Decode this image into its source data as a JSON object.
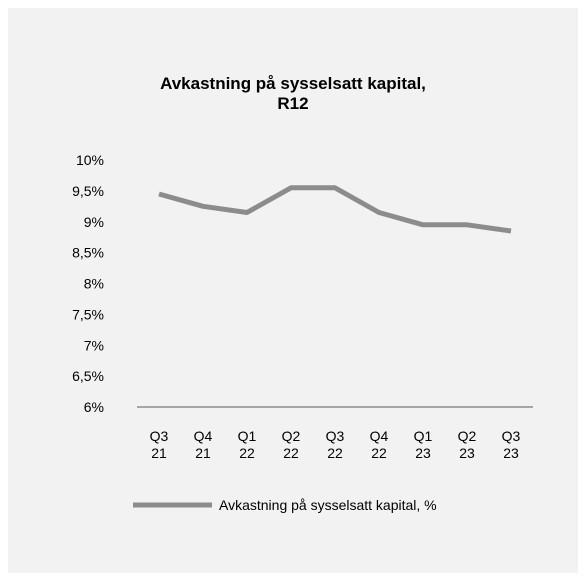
{
  "chart_data": {
    "type": "line",
    "title_lines": [
      "Avkastning på sysselsatt kapital,",
      "R12"
    ],
    "categories": [
      [
        "Q3",
        "21"
      ],
      [
        "Q4",
        "21"
      ],
      [
        "Q1",
        "22"
      ],
      [
        "Q2",
        "22"
      ],
      [
        "Q3",
        "22"
      ],
      [
        "Q4",
        "22"
      ],
      [
        "Q1",
        "23"
      ],
      [
        "Q2",
        "23"
      ],
      [
        "Q3",
        "23"
      ]
    ],
    "series": [
      {
        "name": "Avkastning på sysselsatt kapital, %",
        "values": [
          9.45,
          9.25,
          9.15,
          9.55,
          9.55,
          9.15,
          8.95,
          8.95,
          8.85
        ],
        "color": "#8c8c8c"
      }
    ],
    "ylim": [
      6,
      10
    ],
    "yticks": [
      {
        "value": 6,
        "label": "6%"
      },
      {
        "value": 6.5,
        "label": "6,5%"
      },
      {
        "value": 7,
        "label": "7%"
      },
      {
        "value": 7.5,
        "label": "7,5%"
      },
      {
        "value": 8,
        "label": "8%"
      },
      {
        "value": 8.5,
        "label": "8,5%"
      },
      {
        "value": 9,
        "label": "9%"
      },
      {
        "value": 9.5,
        "label": "9,5%"
      },
      {
        "value": 10,
        "label": "10%"
      }
    ],
    "grid": false,
    "legend_position": "bottom",
    "axis_color": "#8c8c8c",
    "background": "#f2f2f2"
  }
}
